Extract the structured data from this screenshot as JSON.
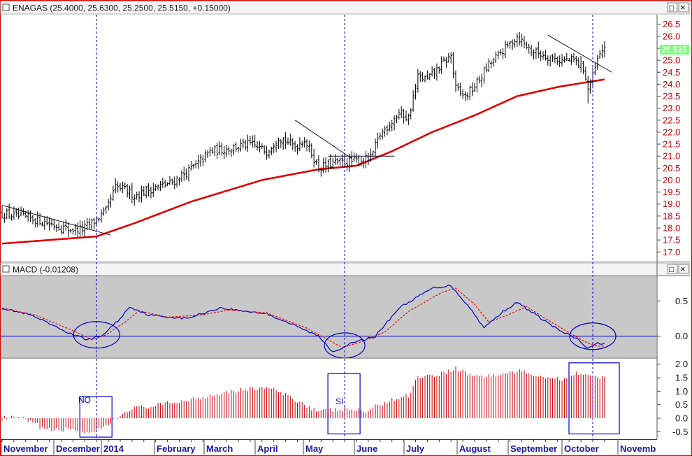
{
  "colors": {
    "price_bar": "#000000",
    "moving_average": "#dd0000",
    "macd_line": "#0000cc",
    "signal_line": "#ee0000",
    "histogram": "#cc0000",
    "annotation": "#0000cc",
    "macd_background": "#c8c8c8",
    "axis_label": "#cc0000",
    "last_price_bg": "#7cfc7c"
  },
  "panels": {
    "price": {
      "title": "ENAGAS (25.4000, 25.6300, 25.2500, 25.5150, +0.15000)",
      "last_value": "25.515"
    },
    "macd": {
      "title": "MACD (-0.01208)"
    },
    "window_buttons": [
      "□",
      "×"
    ]
  },
  "chart_data": [
    {
      "type": "ohlc",
      "title": "ENAGAS (25.4000, 25.6300, 25.2500, 25.5150, +0.15000)",
      "x": [
        "November",
        "December",
        "2014",
        "February",
        "March",
        "April",
        "May",
        "June",
        "July",
        "August",
        "September",
        "October",
        "Novemb"
      ],
      "ylim": [
        16.6,
        26.9
      ],
      "yticks": [
        26.5,
        26.0,
        25.5,
        25.0,
        24.5,
        24.0,
        23.5,
        23.0,
        22.5,
        22.0,
        21.5,
        21.0,
        20.5,
        20.0,
        19.5,
        19.0,
        18.5,
        18.0,
        17.5,
        17.0
      ],
      "last_value": 25.515,
      "close_anchors": [
        [
          0,
          18.6
        ],
        [
          15,
          18.35
        ],
        [
          28,
          17.95
        ],
        [
          34,
          17.95
        ],
        [
          38,
          18.2
        ],
        [
          44,
          18.7
        ],
        [
          48,
          19.7
        ],
        [
          52,
          19.6
        ],
        [
          56,
          19.35
        ],
        [
          62,
          19.6
        ],
        [
          72,
          19.9
        ],
        [
          82,
          20.6
        ],
        [
          88,
          21.2
        ],
        [
          95,
          21.3
        ],
        [
          105,
          21.5
        ],
        [
          112,
          21.2
        ],
        [
          117,
          21.8
        ],
        [
          124,
          21.4
        ],
        [
          128,
          21.7
        ],
        [
          134,
          20.5
        ],
        [
          140,
          20.7
        ],
        [
          150,
          20.8
        ],
        [
          156,
          20.9
        ],
        [
          160,
          21.9
        ],
        [
          168,
          22.8
        ],
        [
          172,
          22.6
        ],
        [
          176,
          24.3
        ],
        [
          180,
          24.2
        ],
        [
          186,
          24.8
        ],
        [
          190,
          25.2
        ],
        [
          192,
          23.8
        ],
        [
          196,
          23.5
        ],
        [
          200,
          23.9
        ],
        [
          206,
          24.8
        ],
        [
          212,
          25.4
        ],
        [
          218,
          26.0
        ],
        [
          224,
          25.4
        ],
        [
          230,
          25.2
        ],
        [
          236,
          25.0
        ],
        [
          242,
          25.0
        ],
        [
          246,
          24.7
        ],
        [
          248,
          23.8
        ],
        [
          250,
          24.3
        ],
        [
          252,
          25.0
        ],
        [
          255,
          25.6
        ]
      ],
      "lows_with_spike": {
        "index": 248,
        "low": 23.2
      },
      "series": [
        {
          "values_from": "moving_average_anchors"
        }
      ],
      "moving_average_anchors": [
        [
          0,
          17.35
        ],
        [
          40,
          17.65
        ],
        [
          56,
          18.2
        ],
        [
          80,
          19.1
        ],
        [
          110,
          20.0
        ],
        [
          134,
          20.45
        ],
        [
          150,
          20.6
        ],
        [
          165,
          21.2
        ],
        [
          182,
          22.0
        ],
        [
          200,
          22.7
        ],
        [
          218,
          23.5
        ],
        [
          236,
          23.9
        ],
        [
          255,
          24.2
        ]
      ],
      "trendlines": [
        {
          "from": [
            0,
            18.95
          ],
          "to": [
            46,
            17.7
          ]
        },
        {
          "from": [
            124,
            22.5
          ],
          "to": [
            148,
            20.9
          ]
        },
        {
          "from": [
            138,
            21.0
          ],
          "to": [
            166,
            21.0
          ]
        },
        {
          "from": [
            231,
            26.05
          ],
          "to": [
            258,
            24.5
          ]
        }
      ],
      "vertical_markers": [
        40,
        145,
        250
      ]
    },
    {
      "type": "line",
      "title": "MACD (-0.01208)",
      "ylim": [
        -0.3,
        0.85
      ],
      "yticks": [
        0.5,
        0.0
      ],
      "series": [
        {
          "role": "macd",
          "anchors": [
            [
              0,
              0.4
            ],
            [
              12,
              0.3
            ],
            [
              28,
              0.05
            ],
            [
              36,
              -0.05
            ],
            [
              42,
              0.0
            ],
            [
              50,
              0.25
            ],
            [
              54,
              0.42
            ],
            [
              62,
              0.3
            ],
            [
              78,
              0.25
            ],
            [
              92,
              0.4
            ],
            [
              112,
              0.32
            ],
            [
              124,
              0.15
            ],
            [
              134,
              0.0
            ],
            [
              140,
              -0.22
            ],
            [
              148,
              -0.1
            ],
            [
              158,
              0.0
            ],
            [
              168,
              0.4
            ],
            [
              182,
              0.68
            ],
            [
              190,
              0.72
            ],
            [
              198,
              0.4
            ],
            [
              204,
              0.12
            ],
            [
              212,
              0.35
            ],
            [
              218,
              0.48
            ],
            [
              226,
              0.3
            ],
            [
              236,
              0.08
            ],
            [
              244,
              -0.05
            ],
            [
              248,
              -0.18
            ],
            [
              252,
              -0.1
            ]
          ]
        },
        {
          "role": "signal",
          "anchors": [
            [
              0,
              0.4
            ],
            [
              14,
              0.3
            ],
            [
              30,
              0.08
            ],
            [
              38,
              -0.05
            ],
            [
              44,
              0.02
            ],
            [
              52,
              0.2
            ],
            [
              58,
              0.36
            ],
            [
              70,
              0.27
            ],
            [
              84,
              0.3
            ],
            [
              96,
              0.37
            ],
            [
              112,
              0.33
            ],
            [
              128,
              0.13
            ],
            [
              138,
              -0.05
            ],
            [
              144,
              -0.16
            ],
            [
              152,
              -0.08
            ],
            [
              162,
              0.06
            ],
            [
              172,
              0.35
            ],
            [
              186,
              0.62
            ],
            [
              192,
              0.68
            ],
            [
              200,
              0.45
            ],
            [
              206,
              0.2
            ],
            [
              214,
              0.3
            ],
            [
              222,
              0.42
            ],
            [
              230,
              0.25
            ],
            [
              240,
              0.05
            ],
            [
              248,
              -0.1
            ],
            [
              252,
              -0.14
            ]
          ]
        }
      ],
      "annotation_ellipses": [
        40,
        145,
        250
      ]
    },
    {
      "type": "bar",
      "ylim": [
        -0.75,
        2.2
      ],
      "yticks": [
        2.0,
        1.5,
        1.0,
        0.5,
        0.0,
        -0.5
      ],
      "anchors": [
        [
          0,
          0.0
        ],
        [
          8,
          0.0
        ],
        [
          20,
          -0.45
        ],
        [
          30,
          -0.4
        ],
        [
          38,
          -0.6
        ],
        [
          44,
          -0.3
        ],
        [
          48,
          -0.05
        ],
        [
          54,
          0.35
        ],
        [
          64,
          0.45
        ],
        [
          80,
          0.7
        ],
        [
          96,
          1.0
        ],
        [
          112,
          1.15
        ],
        [
          124,
          0.7
        ],
        [
          134,
          0.25
        ],
        [
          140,
          0.3
        ],
        [
          146,
          0.35
        ],
        [
          154,
          0.25
        ],
        [
          162,
          0.6
        ],
        [
          172,
          0.85
        ],
        [
          176,
          1.55
        ],
        [
          184,
          1.6
        ],
        [
          192,
          1.85
        ],
        [
          200,
          1.55
        ],
        [
          210,
          1.6
        ],
        [
          218,
          1.75
        ],
        [
          226,
          1.6
        ],
        [
          236,
          1.45
        ],
        [
          244,
          1.7
        ],
        [
          250,
          1.55
        ],
        [
          255,
          1.45
        ]
      ],
      "annotation_labels": [
        "NO",
        "SI"
      ],
      "annotation_boxes": [
        40,
        145,
        250
      ]
    }
  ]
}
